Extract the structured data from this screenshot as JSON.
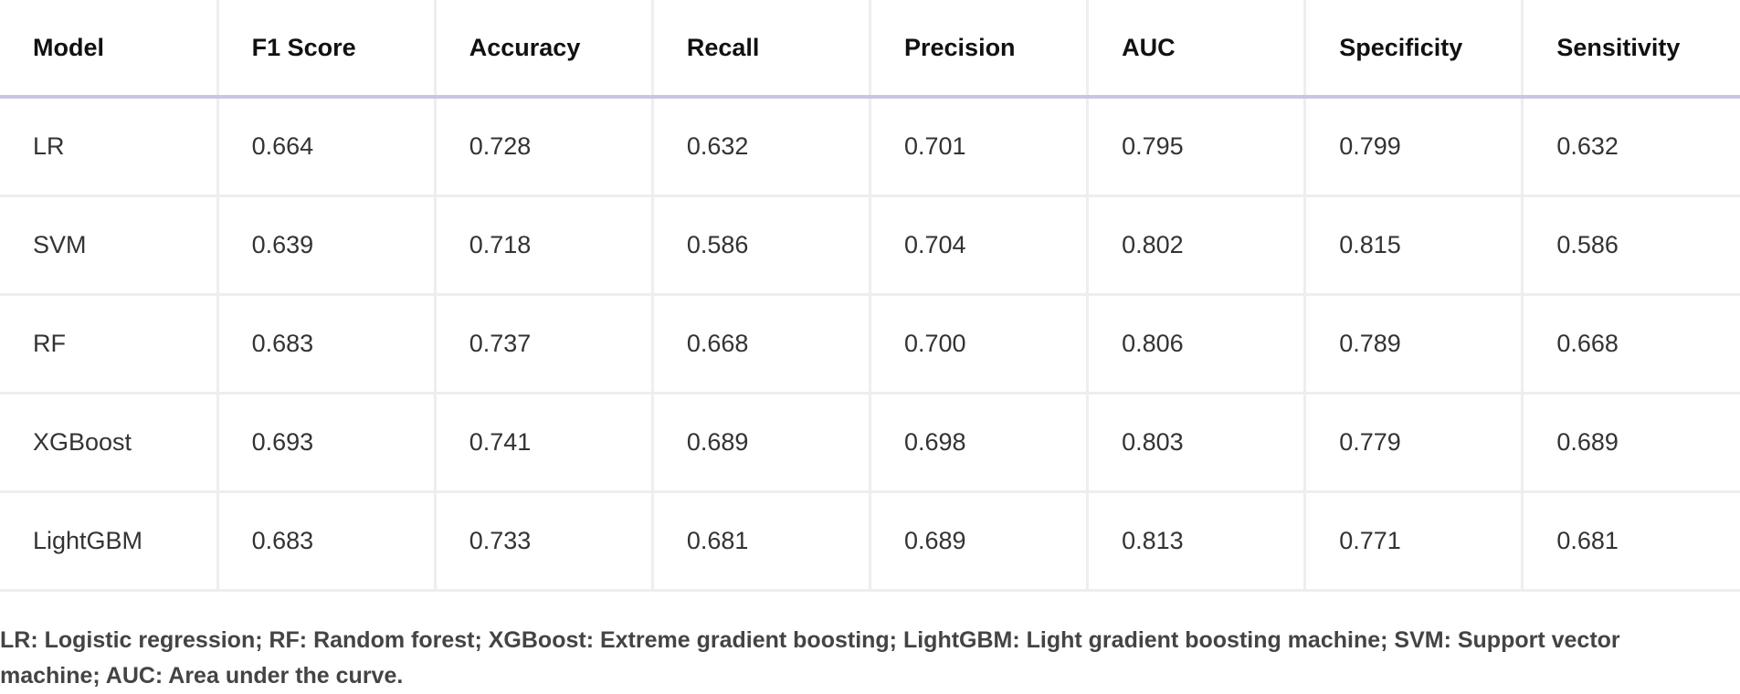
{
  "table": {
    "header": [
      "Model",
      "F1 Score",
      "Accuracy",
      "Recall",
      "Precision",
      "AUC",
      "Specificity",
      "Sensitivity"
    ],
    "rows": [
      [
        "LR",
        "0.664",
        "0.728",
        "0.632",
        "0.701",
        "0.795",
        "0.799",
        "0.632"
      ],
      [
        "SVM",
        "0.639",
        "0.718",
        "0.586",
        "0.704",
        "0.802",
        "0.815",
        "0.586"
      ],
      [
        "RF",
        "0.683",
        "0.737",
        "0.668",
        "0.700",
        "0.806",
        "0.789",
        "0.668"
      ],
      [
        "XGBoost",
        "0.693",
        "0.741",
        "0.689",
        "0.698",
        "0.803",
        "0.779",
        "0.689"
      ],
      [
        "LightGBM",
        "0.683",
        "0.733",
        "0.681",
        "0.689",
        "0.813",
        "0.771",
        "0.681"
      ]
    ]
  },
  "footnote": "LR: Logistic regression; RF: Random forest; XGBoost: Extreme gradient boosting; LightGBM: Light gradient boosting machine; SVM: Support vector machine; AUC: Area under the curve."
}
